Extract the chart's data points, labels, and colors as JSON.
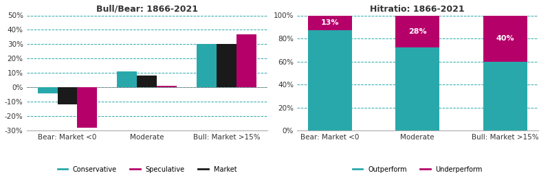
{
  "left_title": "Bull/Bear: 1866-2021",
  "right_title": "Hitratio: 1866-2021",
  "categories": [
    "Bear: Market <0",
    "Moderate",
    "Bull: Market >15%"
  ],
  "conservative": [
    -4,
    11,
    30
  ],
  "speculative": [
    -28,
    1,
    37
  ],
  "market": [
    -12,
    8,
    30
  ],
  "outperform": [
    87,
    72,
    60
  ],
  "underperform": [
    13,
    28,
    40
  ],
  "hit_labels": [
    "13%",
    "28%",
    "40%"
  ],
  "teal": "#29A8AB",
  "magenta": "#B5006A",
  "black": "#1A1A1A",
  "ylim_left": [
    -30,
    50
  ],
  "ylim_right": [
    0,
    100
  ],
  "yticks_left": [
    -30,
    -20,
    -10,
    0,
    10,
    20,
    30,
    40,
    50
  ],
  "yticks_right": [
    0,
    20,
    40,
    60,
    80,
    100
  ],
  "background": "#FFFFFF"
}
